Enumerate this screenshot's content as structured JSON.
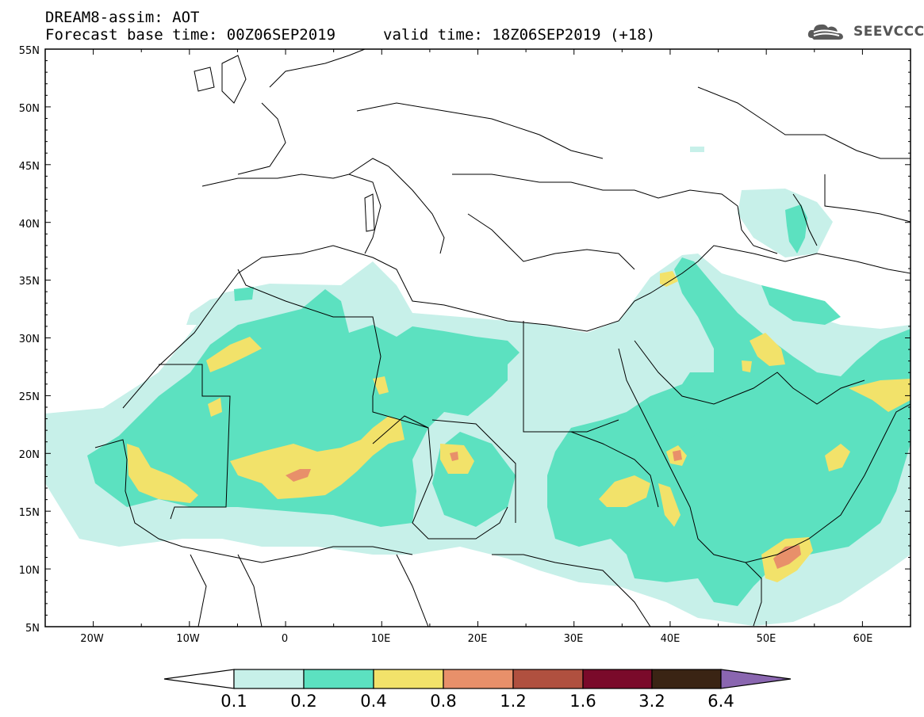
{
  "header": {
    "title_line1": "DREAM8-assim: AOT",
    "title_line2": "Forecast base time: 00Z06SEP2019",
    "valid_time": "valid time: 18Z06SEP2019 (+18)"
  },
  "logo": {
    "text": "SEEVCCC",
    "icon": "cloud-icon"
  },
  "map": {
    "variable": "AOT",
    "lat_labels": [
      "55N",
      "50N",
      "45N",
      "40N",
      "35N",
      "30N",
      "25N",
      "20N",
      "15N",
      "10N",
      "5N"
    ],
    "lon_labels": [
      "20W",
      "10W",
      "0",
      "10E",
      "20E",
      "30E",
      "40E",
      "50E",
      "60E"
    ],
    "lat_range": [
      5,
      55
    ],
    "lon_range": [
      -25,
      65
    ]
  },
  "colorbar": {
    "levels": [
      "0.1",
      "0.2",
      "0.4",
      "0.8",
      "1.2",
      "1.6",
      "3.2",
      "6.4"
    ],
    "colors": {
      "under": "#ffffff",
      "c1": "#c7f0e9",
      "c2": "#5ce1c0",
      "c3": "#f2e26a",
      "c4": "#e8906a",
      "c5": "#b0503f",
      "c6": "#7a0a2a",
      "c7": "#3a2414",
      "over": "#8a66b0"
    }
  }
}
